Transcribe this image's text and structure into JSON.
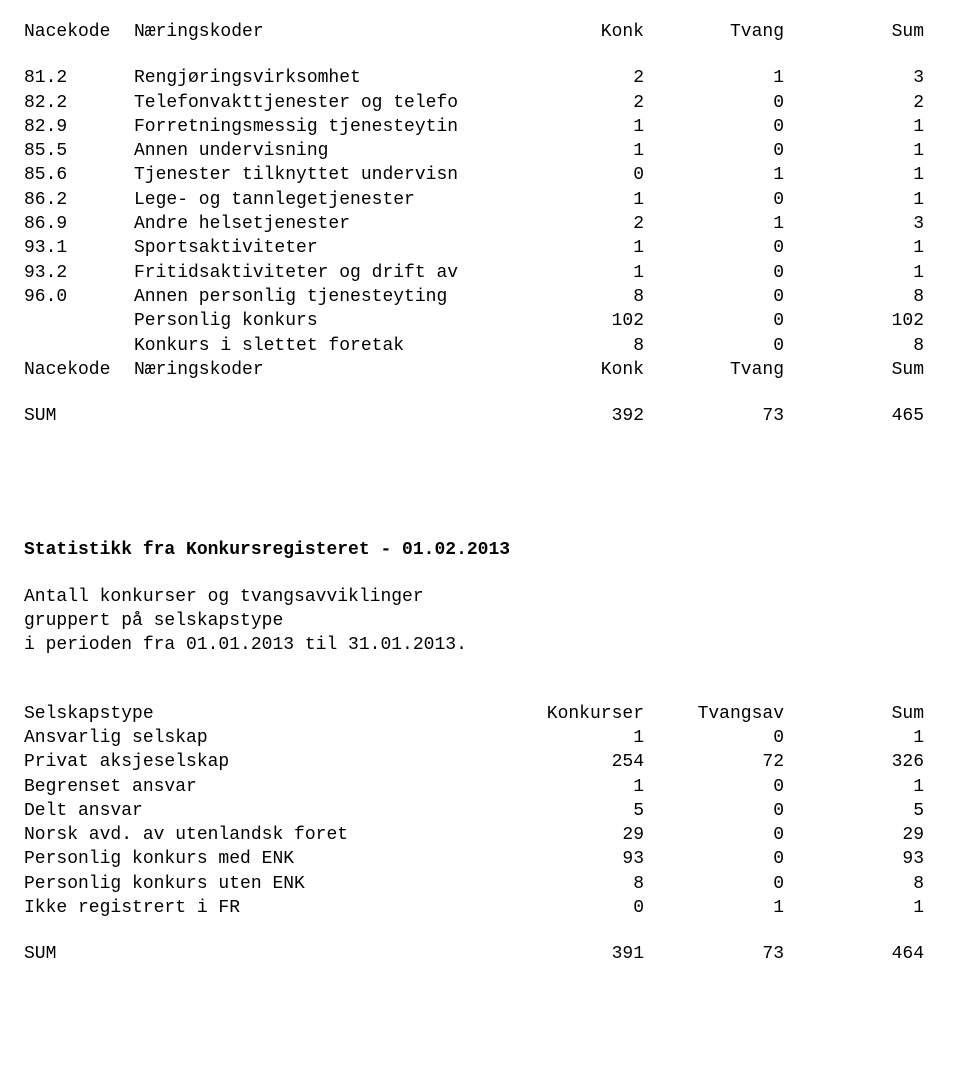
{
  "header1": {
    "c1": "Nacekode",
    "c2": "Næringskoder",
    "c3": "Konk",
    "c4": "Tvang",
    "c5": "Sum"
  },
  "rows1": [
    {
      "c1": "81.2",
      "c2": "Rengjøringsvirksomhet",
      "c3": "2",
      "c4": "1",
      "c5": "3"
    },
    {
      "c1": "82.2",
      "c2": "Telefonvakttjenester og telefo",
      "c3": "2",
      "c4": "0",
      "c5": "2"
    },
    {
      "c1": "82.9",
      "c2": "Forretningsmessig tjenesteytin",
      "c3": "1",
      "c4": "0",
      "c5": "1"
    },
    {
      "c1": "85.5",
      "c2": "Annen undervisning",
      "c3": "1",
      "c4": "0",
      "c5": "1"
    },
    {
      "c1": "85.6",
      "c2": "Tjenester tilknyttet undervisn",
      "c3": "0",
      "c4": "1",
      "c5": "1"
    },
    {
      "c1": "86.2",
      "c2": "Lege- og tannlegetjenester",
      "c3": "1",
      "c4": "0",
      "c5": "1"
    },
    {
      "c1": "86.9",
      "c2": "Andre helsetjenester",
      "c3": "2",
      "c4": "1",
      "c5": "3"
    },
    {
      "c1": "93.1",
      "c2": "Sportsaktiviteter",
      "c3": "1",
      "c4": "0",
      "c5": "1"
    },
    {
      "c1": "93.2",
      "c2": "Fritidsaktiviteter og drift av",
      "c3": "1",
      "c4": "0",
      "c5": "1"
    },
    {
      "c1": "96.0",
      "c2": "Annen personlig tjenesteyting",
      "c3": "8",
      "c4": "0",
      "c5": "8"
    },
    {
      "c1": "",
      "c2": "Personlig konkurs",
      "c3": "102",
      "c4": "0",
      "c5": "102"
    },
    {
      "c1": "",
      "c2": "Konkurs i slettet foretak",
      "c3": "8",
      "c4": "0",
      "c5": "8"
    }
  ],
  "header2": {
    "c1": "Nacekode",
    "c2": "Næringskoder",
    "c3": "Konk",
    "c4": "Tvang",
    "c5": "Sum"
  },
  "sum1": {
    "label": "SUM",
    "c3": "392",
    "c4": "73",
    "c5": "465"
  },
  "title2": "Statistikk fra Konkursregisteret  -  01.02.2013",
  "sub1": "Antall konkurser og tvangsavviklinger",
  "sub2": "gruppert på selskapstype",
  "sub3": "i perioden fra 01.01.2013 til 31.01.2013.",
  "header3": {
    "c1": "Selskapstype",
    "c3": "Konkurser",
    "c4": "Tvangsav",
    "c5": "Sum"
  },
  "rows3": [
    {
      "c1": "Ansvarlig selskap",
      "c3": "1",
      "c4": "0",
      "c5": "1"
    },
    {
      "c1": "Privat aksjeselskap",
      "c3": "254",
      "c4": "72",
      "c5": "326"
    },
    {
      "c1": "Begrenset ansvar",
      "c3": "1",
      "c4": "0",
      "c5": "1"
    },
    {
      "c1": "Delt ansvar",
      "c3": "5",
      "c4": "0",
      "c5": "5"
    },
    {
      "c1": "Norsk avd. av utenlandsk foret",
      "c3": "29",
      "c4": "0",
      "c5": "29"
    },
    {
      "c1": "Personlig konkurs med ENK",
      "c3": "93",
      "c4": "0",
      "c5": "93"
    },
    {
      "c1": "Personlig konkurs uten ENK",
      "c3": "8",
      "c4": "0",
      "c5": "8"
    },
    {
      "c1": "Ikke registrert i FR",
      "c3": "0",
      "c4": "1",
      "c5": "1"
    }
  ],
  "sum2": {
    "label": "SUM",
    "c3": "391",
    "c4": "73",
    "c5": "464"
  }
}
